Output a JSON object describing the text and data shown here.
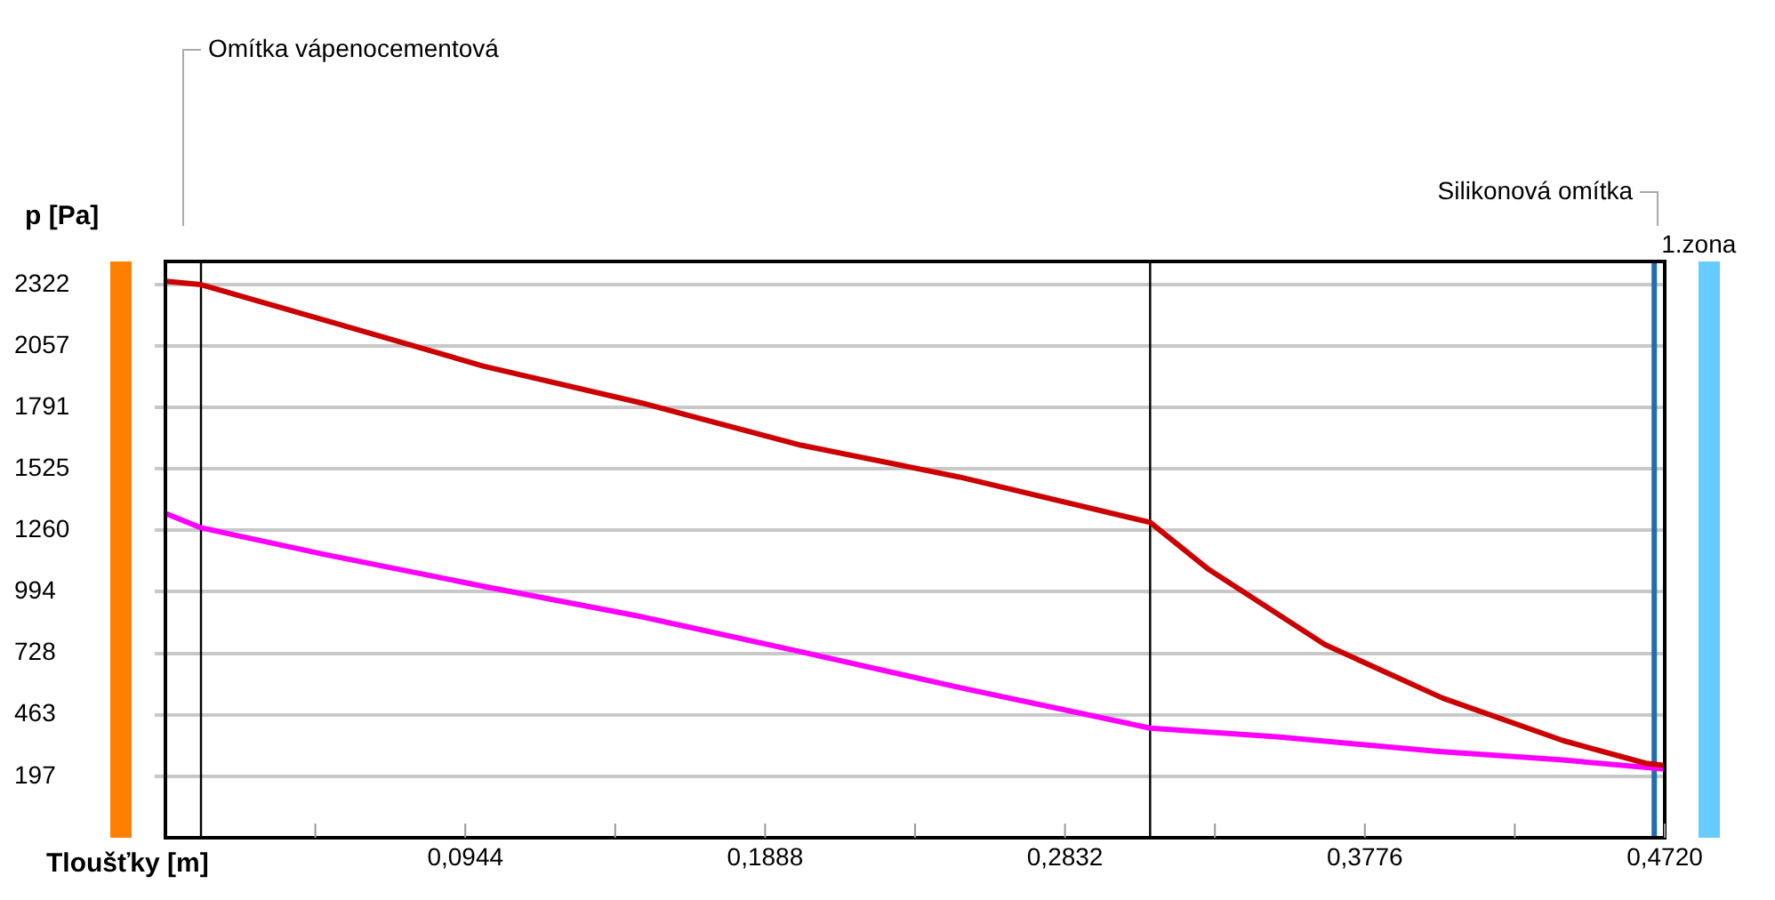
{
  "chart_data": {
    "type": "line",
    "xlabel": "Tloušťky [m]",
    "ylabel": "p [Pa]",
    "xlim": [
      0,
      0.472
    ],
    "xticks": [
      {
        "value": 0.0472,
        "label": null
      },
      {
        "value": 0.0944,
        "label": "0,0944"
      },
      {
        "value": 0.1416,
        "label": null
      },
      {
        "value": 0.1888,
        "label": "0,1888"
      },
      {
        "value": 0.236,
        "label": null
      },
      {
        "value": 0.2832,
        "label": "0,2832"
      },
      {
        "value": 0.3304,
        "label": null
      },
      {
        "value": 0.3776,
        "label": "0,3776"
      },
      {
        "value": 0.4248,
        "label": null
      },
      {
        "value": 0.472,
        "label": "0,4720"
      }
    ],
    "ylim": [
      -69,
      2422
    ],
    "yticks": [
      197,
      463,
      728,
      994,
      1260,
      1525,
      1791,
      2057,
      2322
    ],
    "grid": "y",
    "marker": "none",
    "line_style": "solid",
    "series": [
      {
        "color": "#cc0000",
        "x": [
          0,
          0.0112,
          0.05,
          0.1,
          0.15,
          0.2,
          0.25,
          0.31,
          0.328,
          0.365,
          0.402,
          0.44,
          0.466,
          0.472
        ],
        "values": [
          2337,
          2322,
          2169,
          1970,
          1810,
          1628,
          1490,
          1294,
          1095,
          766,
          535,
          351,
          253,
          243
        ]
      },
      {
        "color": "#ff00ff",
        "x": [
          0,
          0.0112,
          0.05,
          0.1,
          0.15,
          0.2,
          0.25,
          0.31,
          0.35,
          0.4,
          0.44,
          0.472
        ],
        "values": [
          1333,
          1271,
          1156,
          1018,
          886,
          735,
          580,
          405,
          367,
          305,
          267,
          228
        ]
      }
    ],
    "ref_lines": [
      {
        "axis": "x",
        "value": 0.0112,
        "color": "#000000"
      },
      {
        "axis": "x",
        "value": 0.31,
        "color": "#000000"
      },
      {
        "axis": "x",
        "value": 0.4687,
        "color": "#1f6fb0",
        "label": "1.zona"
      }
    ],
    "annotations": [
      "Omítka vápenocementová",
      "Silikonová omítka"
    ]
  }
}
